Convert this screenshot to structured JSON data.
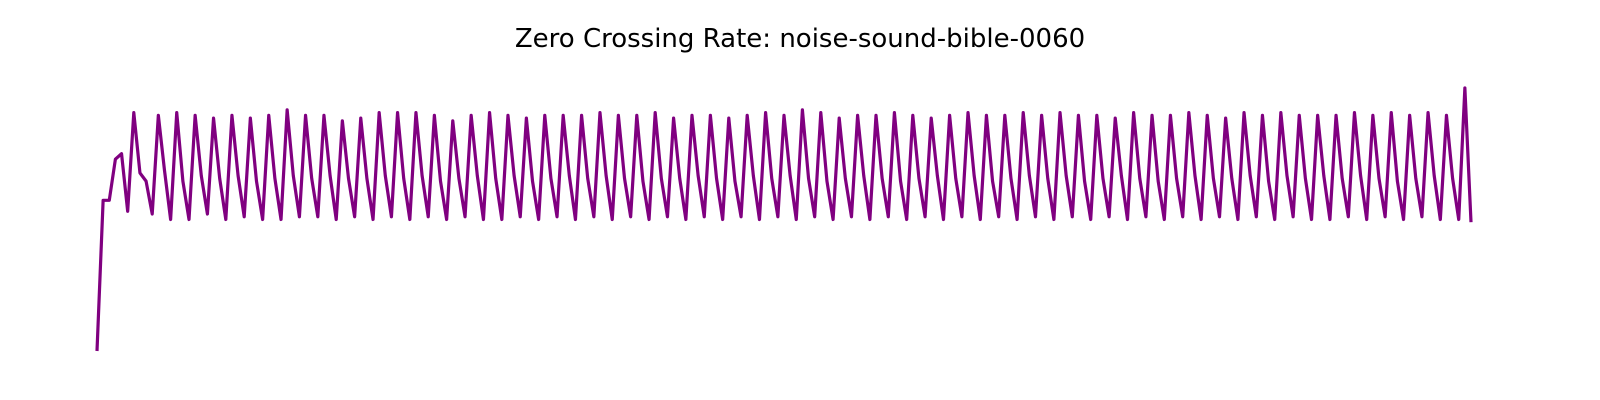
{
  "chart_data": {
    "type": "line",
    "title": "Zero Crossing Rate: noise-sound-bible-0060",
    "xlabel": "",
    "ylabel": "",
    "axes_visible": false,
    "grid": false,
    "legend": "none",
    "line_color": "#800080",
    "ylim": [
      0,
      1
    ],
    "series": [
      {
        "values": [
          0.0,
          0.55,
          0.55,
          0.7,
          0.72,
          0.51,
          0.87,
          0.65,
          0.62,
          0.5,
          0.86,
          0.66,
          0.48,
          0.87,
          0.62,
          0.48,
          0.86,
          0.64,
          0.5,
          0.85,
          0.63,
          0.48,
          0.86,
          0.64,
          0.49,
          0.85,
          0.62,
          0.48,
          0.86,
          0.63,
          0.48,
          0.88,
          0.64,
          0.49,
          0.86,
          0.63,
          0.49,
          0.86,
          0.64,
          0.48,
          0.84,
          0.63,
          0.49,
          0.85,
          0.63,
          0.48,
          0.87,
          0.64,
          0.49,
          0.87,
          0.63,
          0.48,
          0.87,
          0.64,
          0.49,
          0.86,
          0.62,
          0.48,
          0.84,
          0.63,
          0.49,
          0.86,
          0.64,
          0.48,
          0.87,
          0.63,
          0.48,
          0.86,
          0.64,
          0.49,
          0.85,
          0.62,
          0.48,
          0.86,
          0.63,
          0.49,
          0.86,
          0.64,
          0.48,
          0.86,
          0.63,
          0.49,
          0.87,
          0.64,
          0.48,
          0.86,
          0.63,
          0.49,
          0.86,
          0.62,
          0.48,
          0.87,
          0.63,
          0.49,
          0.85,
          0.63,
          0.48,
          0.86,
          0.64,
          0.49,
          0.86,
          0.63,
          0.48,
          0.85,
          0.62,
          0.49,
          0.86,
          0.64,
          0.48,
          0.87,
          0.63,
          0.49,
          0.86,
          0.64,
          0.48,
          0.88,
          0.63,
          0.49,
          0.87,
          0.62,
          0.48,
          0.85,
          0.63,
          0.49,
          0.86,
          0.64,
          0.48,
          0.86,
          0.63,
          0.49,
          0.87,
          0.62,
          0.48,
          0.86,
          0.63,
          0.49,
          0.85,
          0.64,
          0.48,
          0.86,
          0.63,
          0.49,
          0.87,
          0.64,
          0.48,
          0.86,
          0.62,
          0.49,
          0.86,
          0.63,
          0.48,
          0.87,
          0.64,
          0.49,
          0.86,
          0.63,
          0.48,
          0.87,
          0.64,
          0.49,
          0.86,
          0.62,
          0.48,
          0.86,
          0.63,
          0.49,
          0.85,
          0.64,
          0.48,
          0.87,
          0.63,
          0.49,
          0.86,
          0.62,
          0.48,
          0.86,
          0.63,
          0.49,
          0.87,
          0.64,
          0.48,
          0.86,
          0.63,
          0.49,
          0.85,
          0.63,
          0.48,
          0.87,
          0.64,
          0.49,
          0.86,
          0.62,
          0.48,
          0.87,
          0.64,
          0.49,
          0.86,
          0.63,
          0.48,
          0.86,
          0.64,
          0.48,
          0.86,
          0.63,
          0.49,
          0.87,
          0.64,
          0.48,
          0.86,
          0.63,
          0.49,
          0.87,
          0.62,
          0.48,
          0.86,
          0.63,
          0.49,
          0.87,
          0.64,
          0.48,
          0.86,
          0.63,
          0.48,
          0.96,
          0.47
        ]
      }
    ]
  }
}
